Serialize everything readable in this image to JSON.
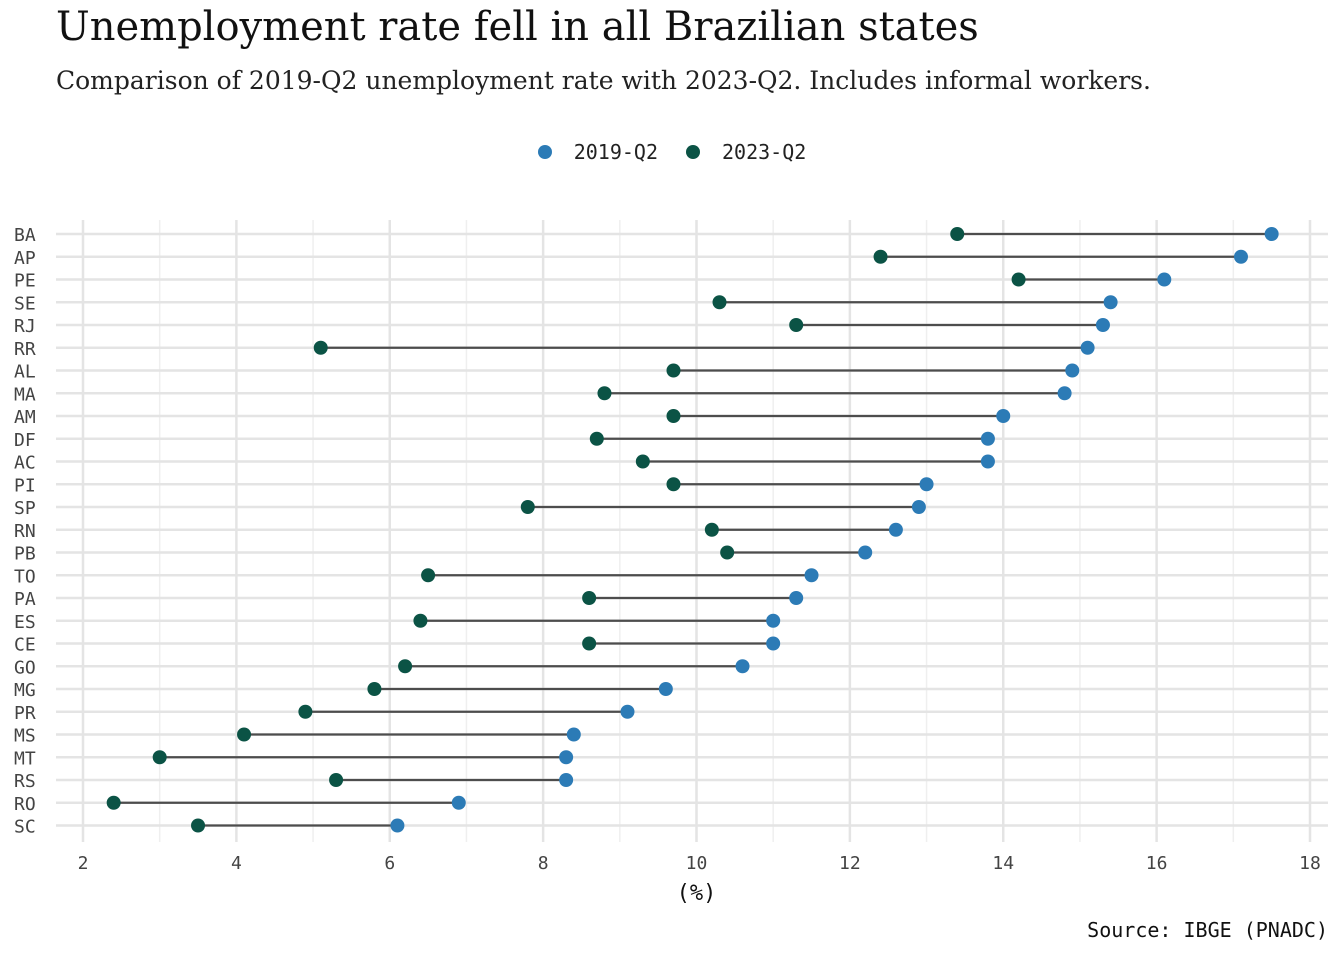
{
  "chart_data": {
    "type": "dumbbell",
    "title": "Unemployment rate fell in all Brazilian states",
    "subtitle": "Comparison of 2019-Q2 unemployment rate with 2023-Q2. Includes informal workers.",
    "xlabel": "(%)",
    "source": "Source: IBGE (PNADC)",
    "xlim": [
      2,
      18
    ],
    "xticks": [
      "2",
      "4",
      "6",
      "8",
      "10",
      "12",
      "14",
      "16",
      "18"
    ],
    "legend_position": "top-center",
    "grid": true,
    "categories": [
      "BA",
      "AP",
      "PE",
      "SE",
      "RJ",
      "RR",
      "AL",
      "MA",
      "AM",
      "DF",
      "AC",
      "PI",
      "SP",
      "RN",
      "PB",
      "TO",
      "PA",
      "ES",
      "CE",
      "GO",
      "MG",
      "PR",
      "MS",
      "MT",
      "RS",
      "RO",
      "SC"
    ],
    "series": [
      {
        "name": "2019-Q2",
        "color": "#2c7bb6",
        "values": [
          17.5,
          17.1,
          16.1,
          15.4,
          15.3,
          15.1,
          14.9,
          14.8,
          14.0,
          13.8,
          13.8,
          13.0,
          12.9,
          12.6,
          12.2,
          11.5,
          11.3,
          11.0,
          11.0,
          10.6,
          9.6,
          9.1,
          8.4,
          8.3,
          8.3,
          6.9,
          6.1
        ]
      },
      {
        "name": "2023-Q2",
        "color": "#0b5345",
        "values": [
          13.4,
          12.4,
          14.2,
          10.3,
          11.3,
          5.1,
          9.7,
          8.8,
          9.7,
          8.7,
          9.3,
          9.7,
          7.8,
          10.2,
          10.4,
          6.5,
          8.6,
          6.4,
          8.6,
          6.2,
          5.8,
          4.9,
          4.1,
          3.0,
          5.3,
          2.4,
          3.5
        ]
      }
    ]
  }
}
